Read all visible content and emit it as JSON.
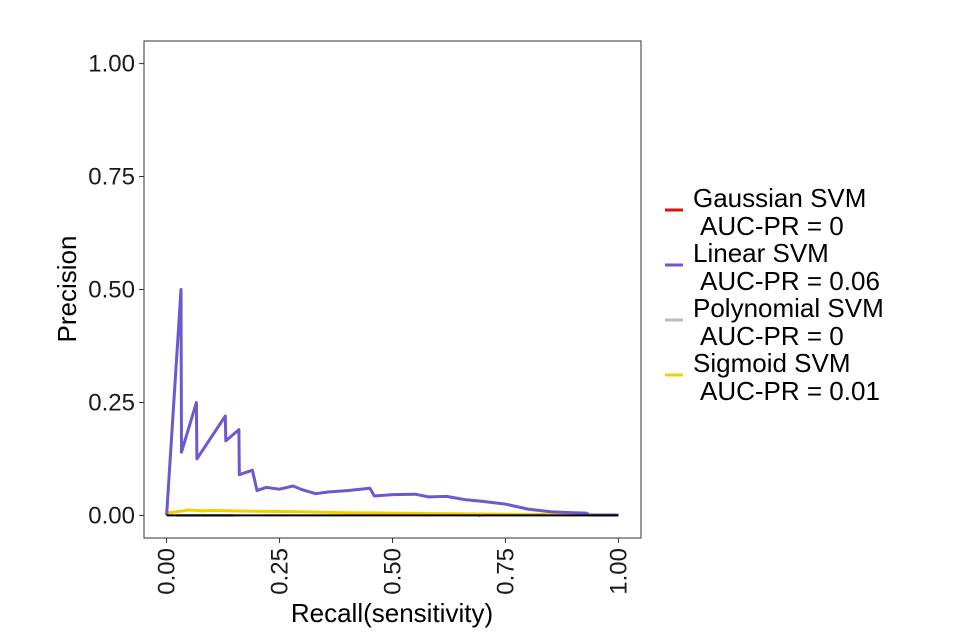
{
  "chart_data": {
    "type": "line",
    "title": "",
    "xlabel": "Recall(sensitivity)",
    "ylabel": "Precision",
    "xlim": [
      -0.05,
      1.05
    ],
    "ylim": [
      -0.05,
      1.05
    ],
    "x_ticks": [
      0,
      0.25,
      0.5,
      0.75,
      1
    ],
    "x_tick_labels": [
      "0.00",
      "0.25",
      "0.50",
      "0.75",
      "1.00"
    ],
    "y_ticks": [
      0,
      0.25,
      0.5,
      0.75,
      1
    ],
    "y_tick_labels": [
      "0.00",
      "0.25",
      "0.50",
      "0.75",
      "1.00"
    ],
    "grid": false,
    "legend_position": "right",
    "reference_line": {
      "y": 0,
      "color": "#000000"
    },
    "series": [
      {
        "name": "Gaussian SVM",
        "auc_label": "AUC-PR = 0",
        "color": "#dd1111",
        "x": [
          0.69,
          0.7,
          0.84
        ],
        "y": [
          0,
          0.002,
          0.002
        ]
      },
      {
        "name": "Linear SVM",
        "auc_label": "AUC-PR = 0.06",
        "color": "#6a5acd",
        "x": [
          0,
          0.032,
          0.033,
          0.066,
          0.067,
          0.13,
          0.131,
          0.16,
          0.161,
          0.19,
          0.2,
          0.22,
          0.25,
          0.28,
          0.3,
          0.33,
          0.36,
          0.4,
          0.45,
          0.46,
          0.5,
          0.55,
          0.58,
          0.62,
          0.66,
          0.7,
          0.75,
          0.8,
          0.85,
          0.9,
          0.93,
          0.935,
          1.0
        ],
        "y": [
          0,
          0.5,
          0.14,
          0.25,
          0.125,
          0.22,
          0.165,
          0.19,
          0.09,
          0.1,
          0.055,
          0.062,
          0.058,
          0.065,
          0.057,
          0.048,
          0.052,
          0.055,
          0.06,
          0.043,
          0.046,
          0.047,
          0.041,
          0.042,
          0.035,
          0.031,
          0.025,
          0.014,
          0.008,
          0.006,
          0.005,
          0.001,
          0.001
        ]
      },
      {
        "name": "Polynomial SVM",
        "auc_label": "AUC-PR = 0",
        "color": "#bdbdbd",
        "x": [
          0.02,
          0.15
        ],
        "y": [
          0,
          0
        ]
      },
      {
        "name": "Sigmoid SVM",
        "auc_label": "AUC-PR = 0.01",
        "color": "#f2d000",
        "x": [
          0,
          0.02,
          0.05,
          0.08,
          0.1,
          0.15,
          0.2,
          0.3,
          0.4,
          0.6,
          0.8,
          0.95,
          1.0
        ],
        "y": [
          0.005,
          0.008,
          0.012,
          0.01,
          0.011,
          0.01,
          0.009,
          0.008,
          0.006,
          0.004,
          0.002,
          0.001,
          0.001
        ]
      }
    ]
  }
}
